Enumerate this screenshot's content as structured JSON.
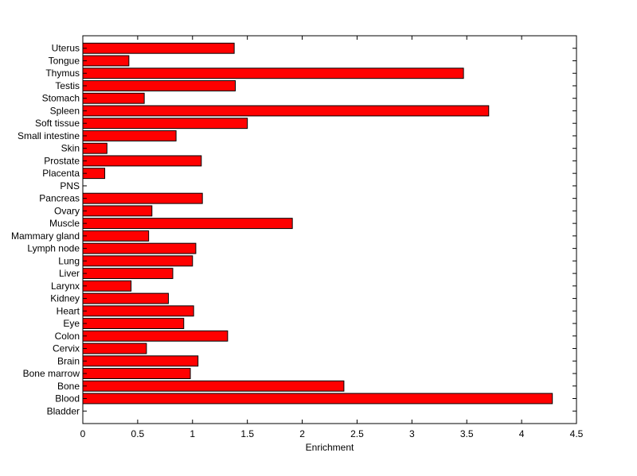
{
  "chart_data": {
    "type": "bar",
    "orientation": "horizontal",
    "categories": [
      "Bladder",
      "Blood",
      "Bone",
      "Bone marrow",
      "Brain",
      "Cervix",
      "Colon",
      "Eye",
      "Heart",
      "Kidney",
      "Larynx",
      "Liver",
      "Lung",
      "Lymph node",
      "Mammary gland",
      "Muscle",
      "Ovary",
      "Pancreas",
      "PNS",
      "Placenta",
      "Prostate",
      "Skin",
      "Small intestine",
      "Soft tissue",
      "Spleen",
      "Stomach",
      "Testis",
      "Thymus",
      "Tongue",
      "Uterus"
    ],
    "values": [
      0,
      4.28,
      2.38,
      0.98,
      1.05,
      0.58,
      1.32,
      0.92,
      1.01,
      0.78,
      0.44,
      0.82,
      1.0,
      1.03,
      0.6,
      1.91,
      0.63,
      1.09,
      0,
      0.2,
      1.08,
      0.22,
      0.85,
      1.5,
      3.7,
      0.56,
      1.39,
      3.47,
      0.42,
      1.38
    ],
    "xlabel": "Enrichment",
    "ylabel": "",
    "title": "",
    "xlim": [
      0,
      4.5
    ],
    "xticks": [
      "0",
      "0.5",
      "1",
      "1.5",
      "2",
      "2.5",
      "3",
      "3.5",
      "4",
      "4.5"
    ],
    "bar_color": "#ff0000",
    "bar_edge_color": "#000000",
    "grid": false
  }
}
